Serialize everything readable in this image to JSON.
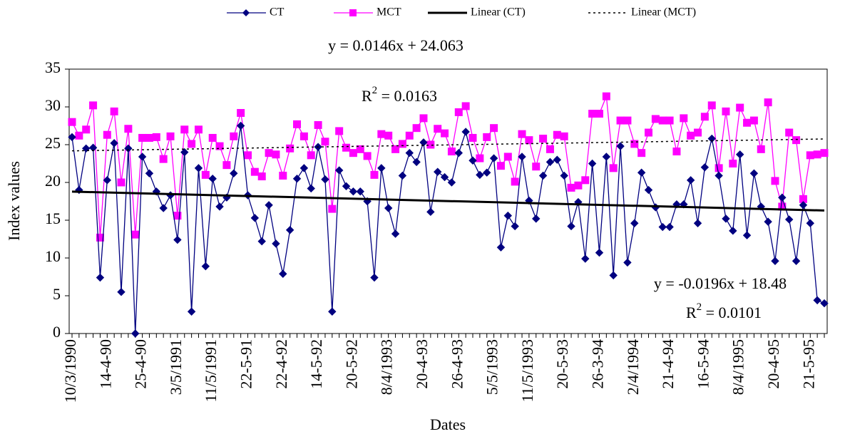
{
  "chart_data": {
    "type": "line",
    "x_label": "Dates",
    "y_label": "Index values",
    "ylim": [
      0,
      35
    ],
    "yticks": [
      0,
      5,
      10,
      15,
      20,
      25,
      30,
      35
    ],
    "categories": [
      "10/3/1990",
      null,
      null,
      null,
      null,
      "14-4-90",
      null,
      null,
      null,
      null,
      "25-4-90",
      null,
      null,
      null,
      null,
      "3/5/1991",
      null,
      null,
      null,
      null,
      "11/5/1991",
      null,
      null,
      null,
      null,
      "22-5-91",
      null,
      null,
      null,
      null,
      "22-4-92",
      null,
      null,
      null,
      null,
      "14-5-92",
      null,
      null,
      null,
      null,
      "20-5-92",
      null,
      null,
      null,
      null,
      "8/4/1993",
      null,
      null,
      null,
      null,
      "20-4-93",
      null,
      null,
      null,
      null,
      "26-4-93",
      null,
      null,
      null,
      null,
      "5/5/1993",
      null,
      null,
      null,
      null,
      "11/5/1993",
      null,
      null,
      null,
      null,
      "20-5-93",
      null,
      null,
      null,
      null,
      "26-3-94",
      null,
      null,
      null,
      null,
      "2/4/1994",
      null,
      null,
      null,
      null,
      "21-4-94",
      null,
      null,
      null,
      null,
      "16-5-94",
      null,
      null,
      null,
      null,
      "8/4/1995",
      null,
      null,
      null,
      null,
      "20-4-95",
      null,
      null,
      null,
      null,
      "21-5-95",
      null,
      null
    ],
    "series": [
      {
        "name": "CT",
        "color": "#000080",
        "marker": "diamond",
        "values": [
          26,
          19,
          24.5,
          24.6,
          7.4,
          20.3,
          25.2,
          5.5,
          24.5,
          0,
          23.4,
          21.2,
          18.8,
          16.6,
          18.3,
          12.4,
          24,
          2.9,
          21.9,
          8.9,
          20.5,
          16.8,
          18,
          21.2,
          27.5,
          18.3,
          15.3,
          12.2,
          17,
          11.9,
          7.9,
          13.7,
          20.5,
          21.9,
          19.2,
          24.7,
          20.4,
          2.9,
          21.6,
          19.5,
          18.8,
          18.8,
          17.5,
          7.4,
          21.9,
          16.6,
          13.2,
          20.9,
          23.9,
          22.7,
          25.3,
          16.1,
          21.4,
          20.7,
          20,
          23.9,
          26.7,
          22.9,
          21,
          21.3,
          23.2,
          11.4,
          15.6,
          14.2,
          23.4,
          17.6,
          15.2,
          20.9,
          22.7,
          23,
          20.9,
          14.2,
          17.4,
          9.9,
          22.5,
          10.7,
          23.4,
          7.7,
          24.8,
          9.4,
          14.6,
          21.3,
          19,
          16.7,
          14.1,
          14.1,
          17.1,
          17.1,
          20.3,
          14.6,
          22,
          25.8,
          20.9,
          15.2,
          13.6,
          23.7,
          13,
          21.2,
          16.8,
          14.8,
          9.6,
          18,
          15.1,
          9.6,
          17,
          14.6,
          4.4,
          4.0
        ]
      },
      {
        "name": "MCT",
        "color": "#ff00ff",
        "marker": "square",
        "values": [
          28,
          26.2,
          27,
          30.2,
          12.7,
          26.3,
          29.4,
          20,
          27.1,
          13.1,
          25.9,
          25.9,
          26,
          23.1,
          26.1,
          15.6,
          27,
          25.1,
          27,
          21,
          25.9,
          24.8,
          22.3,
          26.1,
          29.2,
          23.6,
          21.4,
          20.8,
          23.9,
          23.7,
          20.9,
          24.5,
          27.7,
          26.1,
          23.6,
          27.6,
          25.4,
          16.5,
          26.8,
          24.6,
          23.9,
          24.4,
          23.5,
          21,
          26.4,
          26.2,
          24.4,
          25.1,
          26.2,
          27.2,
          28.5,
          25,
          27.1,
          26.5,
          24.1,
          29.3,
          30.1,
          25.9,
          23.2,
          26,
          27.2,
          22.2,
          23.4,
          20.1,
          26.4,
          25.6,
          22.1,
          25.8,
          24.4,
          26.3,
          26.1,
          19.3,
          19.6,
          20.3,
          29.1,
          29.1,
          31.4,
          21.9,
          28.2,
          28.2,
          25.1,
          23.9,
          26.6,
          28.4,
          28.2,
          28.2,
          24.1,
          28.5,
          26.2,
          26.6,
          28.7,
          30.2,
          21.9,
          29.4,
          22.5,
          29.9,
          27.9,
          28.2,
          24.4,
          30.6,
          20.2,
          16.8,
          26.6,
          25.6,
          17.8,
          23.6,
          23.7,
          23.9
        ]
      }
    ],
    "trendlines": [
      {
        "name": "Linear (CT)",
        "series": 0,
        "color": "#000000",
        "style": "solid",
        "equation": "y = -0.0196x + 18.48",
        "r2_text": [
          "R",
          "2",
          " = 0.0101"
        ]
      },
      {
        "name": "Linear (MCT)",
        "series": 1,
        "color": "#000000",
        "style": "dotted",
        "equation": "y = 0.0146x + 24.063",
        "r2_text": [
          "R",
          "2",
          " = 0.0163"
        ]
      }
    ]
  }
}
